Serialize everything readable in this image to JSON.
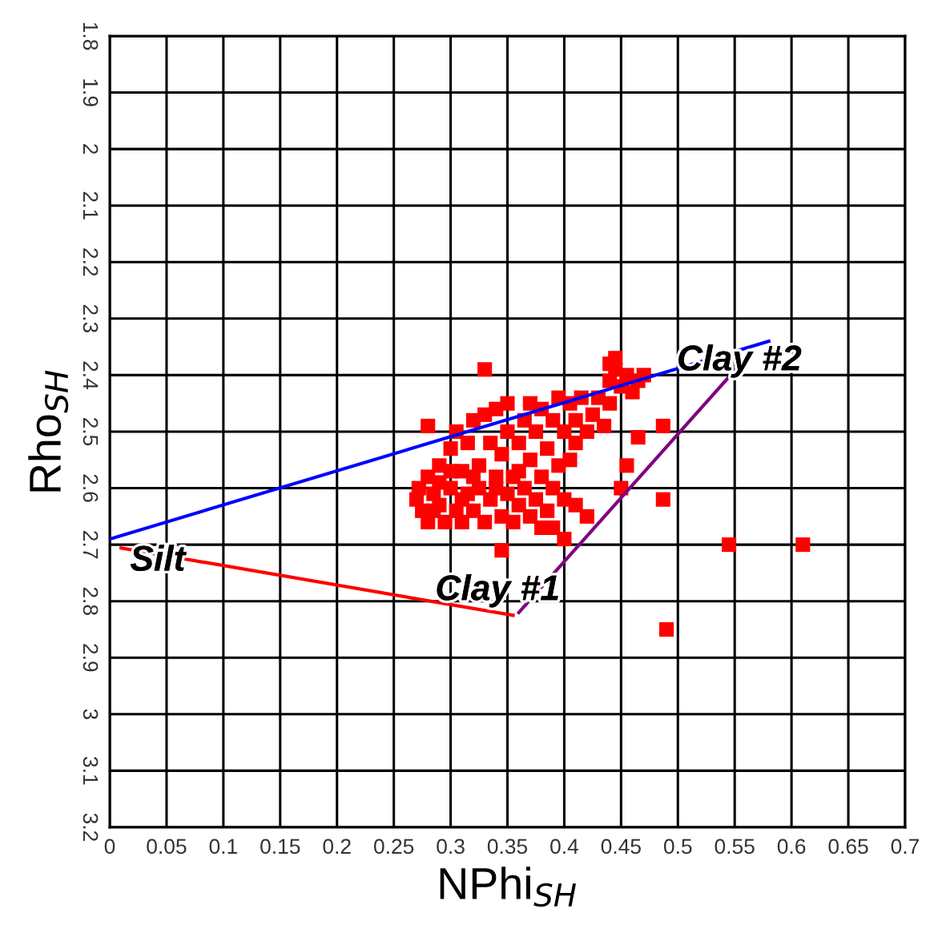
{
  "chart_data": {
    "type": "scatter",
    "xlabel": "NPhi$_{SH}$",
    "ylabel": "Rho$_{SH}$",
    "xlim": [
      0,
      0.7
    ],
    "ylim": [
      3.2,
      1.8
    ],
    "xticks": [
      0,
      0.05,
      0.1,
      0.15,
      0.2,
      0.25,
      0.3,
      0.35,
      0.4,
      0.45,
      0.5,
      0.55,
      0.6,
      0.65,
      0.7
    ],
    "yticks": [
      1.8,
      1.9,
      2,
      2.1,
      2.2,
      2.3,
      2.4,
      2.5,
      2.6,
      2.7,
      2.8,
      2.9,
      3,
      3.1,
      3.2
    ],
    "grid": true,
    "series": [
      {
        "color": "#ff0000",
        "marker": "square",
        "x": [
          0.27,
          0.272,
          0.275,
          0.28,
          0.28,
          0.285,
          0.29,
          0.29,
          0.295,
          0.3,
          0.3,
          0.305,
          0.305,
          0.31,
          0.31,
          0.315,
          0.315,
          0.32,
          0.32,
          0.325,
          0.325,
          0.33,
          0.33,
          0.335,
          0.335,
          0.34,
          0.34,
          0.345,
          0.345,
          0.35,
          0.35,
          0.35,
          0.355,
          0.355,
          0.36,
          0.36,
          0.365,
          0.365,
          0.37,
          0.37,
          0.375,
          0.375,
          0.38,
          0.38,
          0.385,
          0.385,
          0.39,
          0.39,
          0.395,
          0.395,
          0.4,
          0.4,
          0.405,
          0.405,
          0.41,
          0.41,
          0.415,
          0.42,
          0.425,
          0.43,
          0.435,
          0.44,
          0.44,
          0.445,
          0.45,
          0.455,
          0.46,
          0.465,
          0.47,
          0.445,
          0.44,
          0.28,
          0.33,
          0.345,
          0.545,
          0.61,
          0.49,
          0.487,
          0.487,
          0.455,
          0.465,
          0.45,
          0.42,
          0.41,
          0.4,
          0.37,
          0.39,
          0.38,
          0.29,
          0.285,
          0.3,
          0.32,
          0.34,
          0.36,
          0.31
        ],
        "values": [
          2.62,
          2.6,
          2.64,
          2.66,
          2.58,
          2.61,
          2.63,
          2.56,
          2.66,
          2.6,
          2.53,
          2.64,
          2.5,
          2.57,
          2.66,
          2.61,
          2.52,
          2.48,
          2.64,
          2.56,
          2.6,
          2.47,
          2.66,
          2.52,
          2.62,
          2.58,
          2.46,
          2.65,
          2.54,
          2.61,
          2.5,
          2.45,
          2.58,
          2.66,
          2.52,
          2.63,
          2.48,
          2.6,
          2.55,
          2.65,
          2.5,
          2.62,
          2.46,
          2.58,
          2.53,
          2.64,
          2.48,
          2.6,
          2.56,
          2.44,
          2.5,
          2.62,
          2.45,
          2.55,
          2.48,
          2.52,
          2.44,
          2.5,
          2.47,
          2.44,
          2.49,
          2.41,
          2.45,
          2.39,
          2.42,
          2.4,
          2.43,
          2.41,
          2.4,
          2.37,
          2.38,
          2.49,
          2.39,
          2.71,
          2.7,
          2.7,
          2.85,
          2.62,
          2.49,
          2.56,
          2.51,
          2.6,
          2.65,
          2.63,
          2.69,
          2.45,
          2.67,
          2.67,
          2.59,
          2.64,
          2.57,
          2.58,
          2.6,
          2.57,
          2.62
        ]
      },
      {
        "type": "line",
        "color": "#0000ff",
        "marker": "none",
        "line_style": "solid",
        "x": [
          0,
          0.58
        ],
        "values": [
          2.69,
          2.34
        ]
      },
      {
        "type": "line",
        "color": "#ff0000",
        "marker": "none",
        "line_style": "solid",
        "x": [
          0.01,
          0.355
        ],
        "values": [
          2.706,
          2.825
        ]
      },
      {
        "type": "line",
        "color": "#800080",
        "marker": "none",
        "line_style": "solid",
        "x": [
          0.36,
          0.553
        ],
        "values": [
          2.82,
          2.385
        ]
      }
    ],
    "annotations": [
      {
        "text": "Silt",
        "x": 0.01,
        "y": 2.706
      },
      {
        "text": "Clay #1",
        "x": 0.355,
        "y": 2.825
      },
      {
        "text": "Clay #2",
        "x": 0.553,
        "y": 2.385
      }
    ]
  }
}
